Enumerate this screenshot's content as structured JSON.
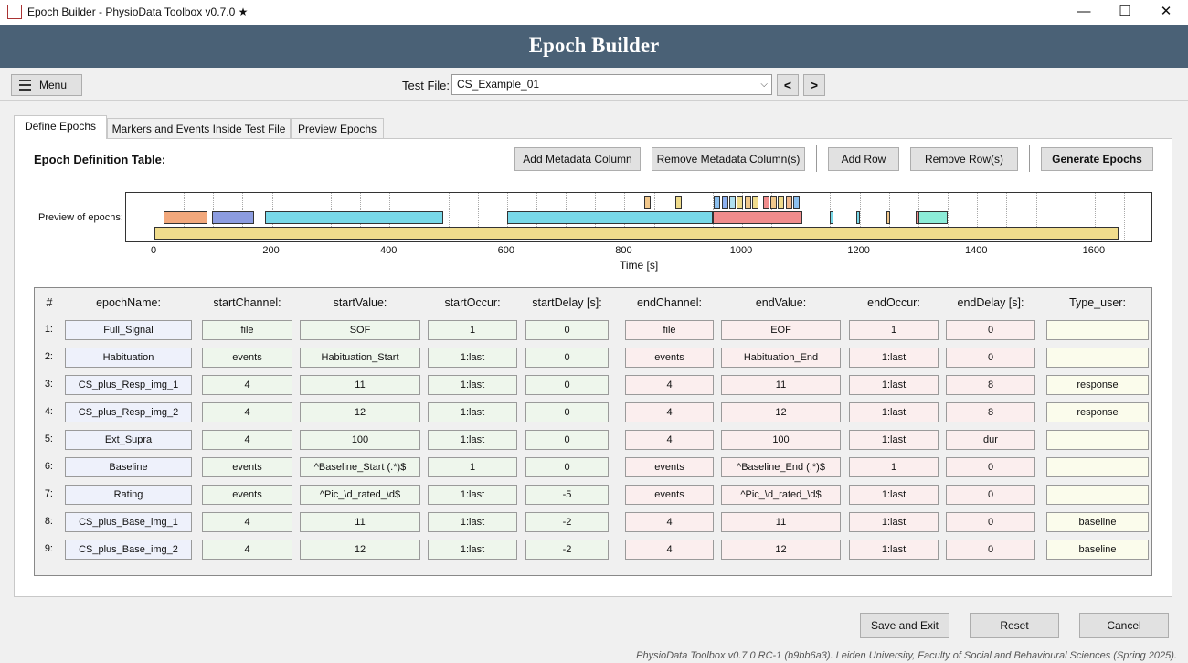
{
  "window": {
    "title": "Epoch Builder - PhysioData Toolbox v0.7.0 ★",
    "minimize": "—",
    "maximize": "☐",
    "close": "✕"
  },
  "header": {
    "title": "Epoch Builder"
  },
  "toolbar": {
    "menu_label": "Menu",
    "test_file_label": "Test File:",
    "test_file_value": "CS_Example_01",
    "prev_label": "<",
    "next_label": ">"
  },
  "tabs": [
    {
      "label": "Define Epochs",
      "active": true
    },
    {
      "label": "Markers and Events Inside Test File",
      "active": false
    },
    {
      "label": "Preview Epochs",
      "active": false
    }
  ],
  "definition": {
    "title": "Epoch Definition Table:",
    "buttons": {
      "add_metadata": "Add Metadata Column",
      "remove_metadata": "Remove Metadata Column(s)",
      "add_row": "Add Row",
      "remove_row": "Remove Row(s)",
      "generate": "Generate Epochs"
    }
  },
  "preview": {
    "label": "Preview of epochs:",
    "xlabel": "Time [s]",
    "xticks": [
      "0",
      "200",
      "400",
      "600",
      "800",
      "1000",
      "1200",
      "1400",
      "1600"
    ],
    "xlim": [
      0,
      1650
    ],
    "epochs": [
      {
        "start": 0,
        "end": 1640,
        "row": 2,
        "color": "#f0dc8c"
      },
      {
        "start": 15,
        "end": 90,
        "row": 1,
        "color": "#f2a87c"
      },
      {
        "start": 98,
        "end": 170,
        "row": 1,
        "color": "#8c9ce0"
      },
      {
        "start": 188,
        "end": 492,
        "row": 1,
        "color": "#78d8e8"
      },
      {
        "start": 600,
        "end": 950,
        "row": 1,
        "color": "#78d8e8"
      },
      {
        "start": 950,
        "end": 1102,
        "row": 1,
        "color": "#f08c8c"
      },
      {
        "start": 1150,
        "end": 1155,
        "row": 1,
        "color": "#78d8e8"
      },
      {
        "start": 1195,
        "end": 1200,
        "row": 1,
        "color": "#78d8e8"
      },
      {
        "start": 1245,
        "end": 1250,
        "row": 1,
        "color": "#f2c88c"
      },
      {
        "start": 1295,
        "end": 1300,
        "row": 1,
        "color": "#f08c8c"
      },
      {
        "start": 1300,
        "end": 1350,
        "row": 1,
        "color": "#8cecd8"
      },
      {
        "start": 834,
        "end": 845,
        "row": 0,
        "color": "#f2c88c"
      },
      {
        "start": 886,
        "end": 897,
        "row": 0,
        "color": "#f0dc8c"
      },
      {
        "start": 952,
        "end": 963,
        "row": 0,
        "color": "#8cc0f0"
      },
      {
        "start": 965,
        "end": 976,
        "row": 0,
        "color": "#8cb0f0"
      },
      {
        "start": 978,
        "end": 989,
        "row": 0,
        "color": "#b0e0f0"
      },
      {
        "start": 991,
        "end": 1002,
        "row": 0,
        "color": "#f0dc8c"
      },
      {
        "start": 1004,
        "end": 1015,
        "row": 0,
        "color": "#f0c88c"
      },
      {
        "start": 1017,
        "end": 1028,
        "row": 0,
        "color": "#f0dc8c"
      },
      {
        "start": 1035,
        "end": 1046,
        "row": 0,
        "color": "#f08c8c"
      },
      {
        "start": 1048,
        "end": 1059,
        "row": 0,
        "color": "#f0c88c"
      },
      {
        "start": 1061,
        "end": 1072,
        "row": 0,
        "color": "#f0dc8c"
      },
      {
        "start": 1074,
        "end": 1085,
        "row": 0,
        "color": "#f0b88c"
      },
      {
        "start": 1087,
        "end": 1098,
        "row": 0,
        "color": "#8cc0f0"
      }
    ]
  },
  "table": {
    "headers": [
      "#",
      "epochName:",
      "startChannel:",
      "startValue:",
      "startOccur:",
      "startDelay [s]:",
      "endChannel:",
      "endValue:",
      "endOccur:",
      "endDelay [s]:",
      "Type_user:"
    ],
    "rows": [
      {
        "num": "1:",
        "cells": [
          "Full_Signal",
          "file",
          "SOF",
          "1",
          "0",
          "file",
          "EOF",
          "1",
          "0",
          ""
        ]
      },
      {
        "num": "2:",
        "cells": [
          "Habituation",
          "events",
          "Habituation_Start",
          "1:last",
          "0",
          "events",
          "Habituation_End",
          "1:last",
          "0",
          ""
        ]
      },
      {
        "num": "3:",
        "cells": [
          "CS_plus_Resp_img_1",
          "4",
          "11",
          "1:last",
          "0",
          "4",
          "11",
          "1:last",
          "8",
          "response"
        ]
      },
      {
        "num": "4:",
        "cells": [
          "CS_plus_Resp_img_2",
          "4",
          "12",
          "1:last",
          "0",
          "4",
          "12",
          "1:last",
          "8",
          "response"
        ]
      },
      {
        "num": "5:",
        "cells": [
          "Ext_Supra",
          "4",
          "100",
          "1:last",
          "0",
          "4",
          "100",
          "1:last",
          "dur",
          ""
        ]
      },
      {
        "num": "6:",
        "cells": [
          "Baseline",
          "events",
          "^Baseline_Start (.*)$",
          "1",
          "0",
          "events",
          "^Baseline_End (.*)$",
          "1",
          "0",
          ""
        ]
      },
      {
        "num": "7:",
        "cells": [
          "Rating",
          "events",
          "^Pic_\\d_rated_\\d$",
          "1:last",
          "-5",
          "events",
          "^Pic_\\d_rated_\\d$",
          "1:last",
          "0",
          ""
        ]
      },
      {
        "num": "8:",
        "cells": [
          "CS_plus_Base_img_1",
          "4",
          "11",
          "1:last",
          "-2",
          "4",
          "11",
          "1:last",
          "0",
          "baseline"
        ]
      },
      {
        "num": "9:",
        "cells": [
          "CS_plus_Base_img_2",
          "4",
          "12",
          "1:last",
          "-2",
          "4",
          "12",
          "1:last",
          "0",
          "baseline"
        ]
      }
    ]
  },
  "actions": {
    "save": "Save and Exit",
    "reset": "Reset",
    "cancel": "Cancel"
  },
  "footer": "PhysioData Toolbox v0.7.0 RC-1 (b9bb6a3). Leiden University, Faculty of Social and Behavioural Sciences (Spring 2025)."
}
